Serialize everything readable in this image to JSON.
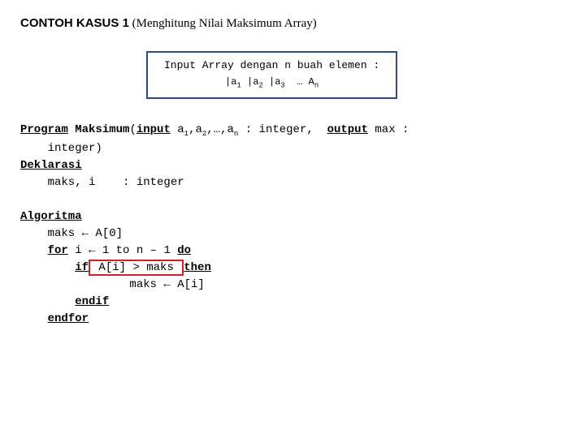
{
  "title": {
    "bold": "CONTOH KASUS 1",
    "rest": " (Menghitung Nilai Maksimum Array)"
  },
  "inputbox": {
    "line1": "Input Array dengan n buah elemen :",
    "a1": "a",
    "s1": "1",
    "a2": "a",
    "s2": "2",
    "a3": "a",
    "s3": "3",
    "ell": "…",
    "an": "A",
    "sn": "n",
    "pipe": "|"
  },
  "code": {
    "program": "Program",
    "maksimum": "Maksimum",
    "input": "input",
    "params_a1": "a",
    "params_s1": "1",
    "params_a2": "a",
    "params_s2": "2",
    "params_ell": ",…,",
    "params_an": "a",
    "params_sn": "n",
    "colon": " : ",
    "integer": "integer,",
    "output": "output",
    "max": " max :",
    "line2": "    integer)",
    "deklarasi": "Deklarasi",
    "decl_line": "    maks, i    : integer",
    "algoritma": "Algoritma",
    "l1": "    maks ← A[0]",
    "for": "for",
    "l2a": " i ← 1 to n – 1 ",
    "do": "do",
    "if": "if",
    "cond": " A[i] > maks ",
    "then": "then",
    "l4": "                maks ← A[i]",
    "endif": "endif",
    "endfor": "endfor"
  },
  "colors": {
    "box_border": "#2a4a8a",
    "red_border": "#d02020",
    "bg": "#ffffff",
    "text": "#000000"
  }
}
